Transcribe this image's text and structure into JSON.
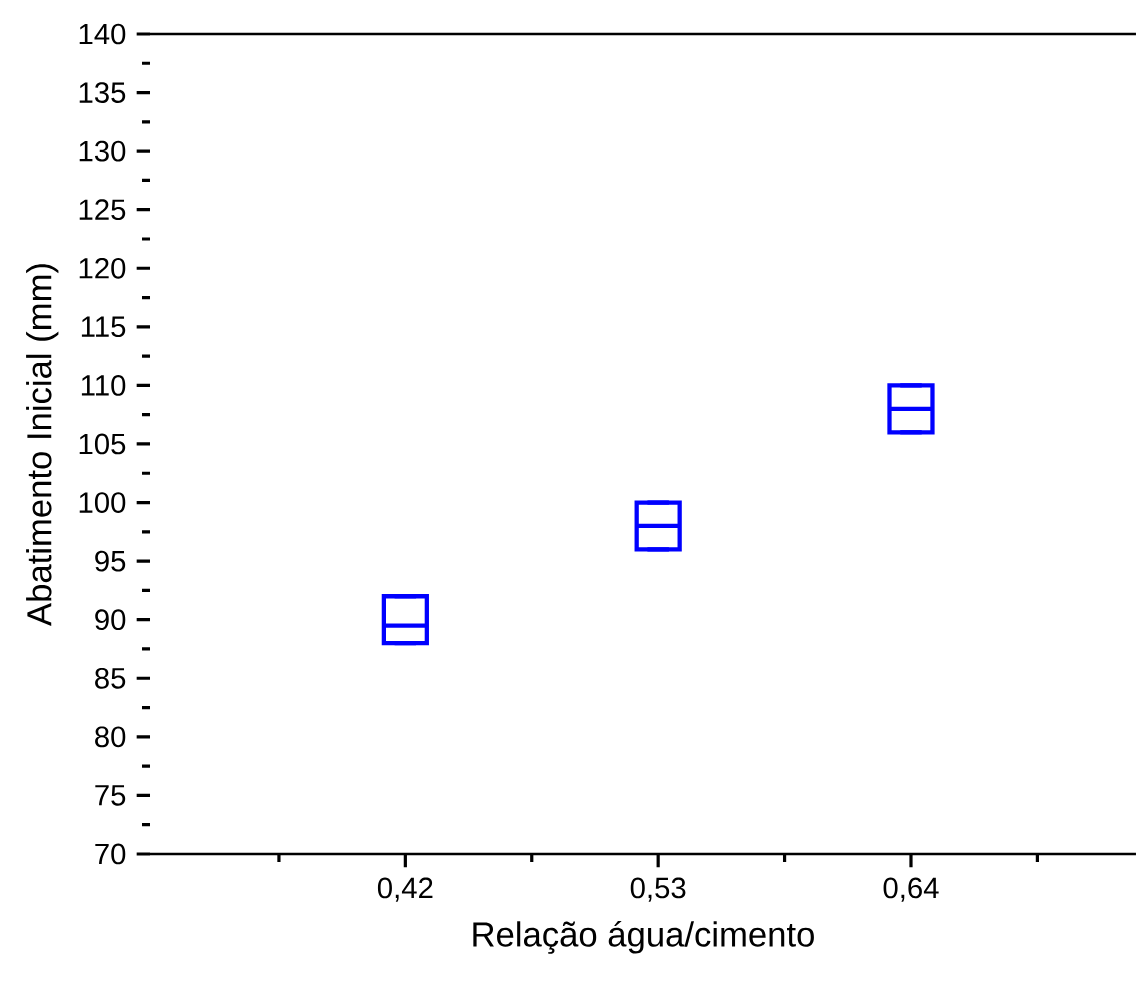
{
  "chart_data": {
    "type": "box",
    "categories": [
      "0,42",
      "0,53",
      "0,64"
    ],
    "xlabel": "Relação água/cimento",
    "ylabel": "Abatimento Inicial (mm)",
    "ylim": [
      70,
      140
    ],
    "yticks": [
      70,
      75,
      80,
      85,
      90,
      95,
      100,
      105,
      110,
      115,
      120,
      125,
      130,
      135,
      140
    ],
    "series": [
      {
        "color": "#0000ff",
        "boxes": [
          {
            "low": 88,
            "q1": 88,
            "median": 89.5,
            "q3": 92,
            "high": 92
          },
          {
            "low": 96,
            "q1": 96,
            "median": 98,
            "q3": 100,
            "high": 100
          },
          {
            "low": 106,
            "q1": 106,
            "median": 108,
            "q3": 110,
            "high": 110
          }
        ]
      }
    ]
  }
}
